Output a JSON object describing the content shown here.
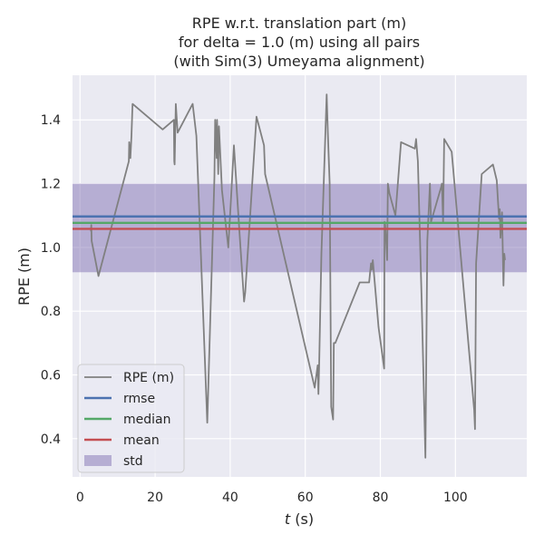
{
  "chart_data": {
    "type": "line",
    "title_lines": [
      "RPE w.r.t. translation part (m)",
      "for delta = 1.0 (m) using all pairs",
      "(with Sim(3) Umeyama alignment)"
    ],
    "xlabel_italic": "t",
    "xlabel_rest": " (s)",
    "ylabel": "RPE (m)",
    "xlim": [
      -2,
      119
    ],
    "ylim": [
      0.28,
      1.54
    ],
    "xticks": [
      0,
      20,
      40,
      60,
      80,
      100
    ],
    "yticks": [
      0.4,
      0.6,
      0.8,
      1.0,
      1.2,
      1.4
    ],
    "ytick_labels": [
      "0.4",
      "0.6",
      "0.8",
      "1.0",
      "1.2",
      "1.4"
    ],
    "grid": true,
    "legend_position": "lower-left",
    "series": [
      {
        "name": "RPE (m)",
        "color": "#808080",
        "x": [
          2.9,
          3.0,
          3.1,
          4.9,
          13.0,
          13.1,
          13.4,
          13.7,
          14.0,
          22.0,
          25.0,
          25.1,
          25.2,
          25.5,
          26.0,
          30.0,
          31.0,
          33.9,
          35.8,
          36.0,
          36.4,
          36.5,
          36.8,
          37.0,
          37.8,
          39.5,
          41.0,
          42.5,
          43.7,
          44.0,
          47.0,
          49.0,
          49.3,
          62.5,
          63.3,
          63.5,
          63.7,
          64.3,
          65.7,
          66.0,
          66.5,
          66.9,
          67.4,
          67.6,
          68.0,
          74.5,
          77.0,
          77.5,
          77.7,
          78.0,
          79.5,
          81.0,
          81.1,
          81.3,
          81.8,
          82.0,
          82.4,
          84.0,
          85.5,
          89.2,
          89.5,
          90.0,
          91.0,
          92.0,
          92.5,
          93.2,
          93.5,
          96.2,
          96.4,
          96.7,
          97.0,
          99.0,
          105.0,
          105.2,
          105.5,
          107.0,
          110.0,
          111.0,
          111.6,
          111.8,
          112.0,
          112.4,
          112.8,
          113.0,
          113.2
        ],
        "y": [
          1.05,
          1.07,
          1.02,
          0.91,
          1.27,
          1.33,
          1.28,
          1.35,
          1.45,
          1.37,
          1.4,
          1.27,
          1.26,
          1.45,
          1.36,
          1.45,
          1.35,
          0.45,
          1.22,
          1.4,
          1.28,
          1.4,
          1.23,
          1.38,
          1.18,
          1.0,
          1.32,
          1.04,
          0.83,
          0.86,
          1.41,
          1.32,
          1.23,
          0.56,
          0.63,
          0.54,
          0.63,
          0.98,
          1.48,
          1.36,
          1.2,
          0.5,
          0.46,
          0.7,
          0.7,
          0.89,
          0.89,
          0.95,
          0.93,
          0.96,
          0.75,
          0.62,
          1.08,
          1.07,
          0.96,
          1.2,
          1.17,
          1.1,
          1.33,
          1.31,
          1.34,
          1.27,
          0.83,
          0.34,
          1.02,
          1.2,
          1.08,
          1.19,
          1.2,
          1.08,
          1.34,
          1.3,
          0.49,
          0.43,
          0.95,
          1.23,
          1.26,
          1.21,
          1.09,
          1.12,
          1.03,
          1.11,
          0.88,
          0.98,
          0.96
        ]
      }
    ],
    "stats": {
      "rmse": {
        "name": "rmse",
        "value": 1.097,
        "color": "#4c72b0"
      },
      "median": {
        "name": "median",
        "value": 1.077,
        "color": "#55a868"
      },
      "mean": {
        "name": "mean",
        "value": 1.058,
        "color": "#c44e52"
      },
      "std": {
        "name": "std",
        "low": 0.922,
        "high": 1.2,
        "color": "#8172b3"
      }
    },
    "legend_entries": [
      "RPE (m)",
      "rmse",
      "median",
      "mean",
      "std"
    ]
  }
}
